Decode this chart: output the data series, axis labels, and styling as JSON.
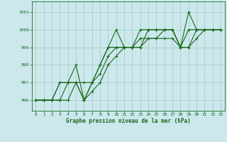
{
  "bg_color": "#cce8ed",
  "grid_color": "#aacccc",
  "line_color": "#1a6b1a",
  "title": "Graphe pression niveau de la mer (hPa)",
  "xlim": [
    -0.5,
    23.5
  ],
  "ylim": [
    995.4,
    1001.6
  ],
  "yticks": [
    996,
    997,
    998,
    999,
    1000,
    1001
  ],
  "xticks": [
    0,
    1,
    2,
    3,
    4,
    5,
    6,
    7,
    8,
    9,
    10,
    11,
    12,
    13,
    14,
    15,
    16,
    17,
    18,
    19,
    20,
    21,
    22,
    23
  ],
  "series": [
    [
      996.0,
      996.0,
      996.0,
      997.0,
      997.0,
      998.0,
      996.0,
      997.0,
      998.0,
      999.0,
      1000.0,
      999.0,
      999.0,
      1000.0,
      1000.0,
      1000.0,
      1000.0,
      1000.0,
      999.0,
      1001.0,
      1000.0,
      1000.0,
      1000.0,
      1000.0
    ],
    [
      996.0,
      996.0,
      996.0,
      997.0,
      997.0,
      997.0,
      997.0,
      997.0,
      998.0,
      999.0,
      999.0,
      999.0,
      999.0,
      999.0,
      1000.0,
      1000.0,
      1000.0,
      1000.0,
      999.0,
      1000.0,
      1000.0,
      1000.0,
      1000.0,
      1000.0
    ],
    [
      996.0,
      996.0,
      996.0,
      996.0,
      997.0,
      997.0,
      996.0,
      997.0,
      997.5,
      998.5,
      999.0,
      999.0,
      999.0,
      999.5,
      999.5,
      999.5,
      1000.0,
      1000.0,
      999.0,
      999.0,
      1000.0,
      1000.0,
      1000.0,
      1000.0
    ],
    [
      996.0,
      996.0,
      996.0,
      996.0,
      996.0,
      997.0,
      996.0,
      996.5,
      997.0,
      998.0,
      998.5,
      999.0,
      999.0,
      999.0,
      999.5,
      999.5,
      999.5,
      999.5,
      999.0,
      999.0,
      999.5,
      1000.0,
      1000.0,
      1000.0
    ]
  ]
}
